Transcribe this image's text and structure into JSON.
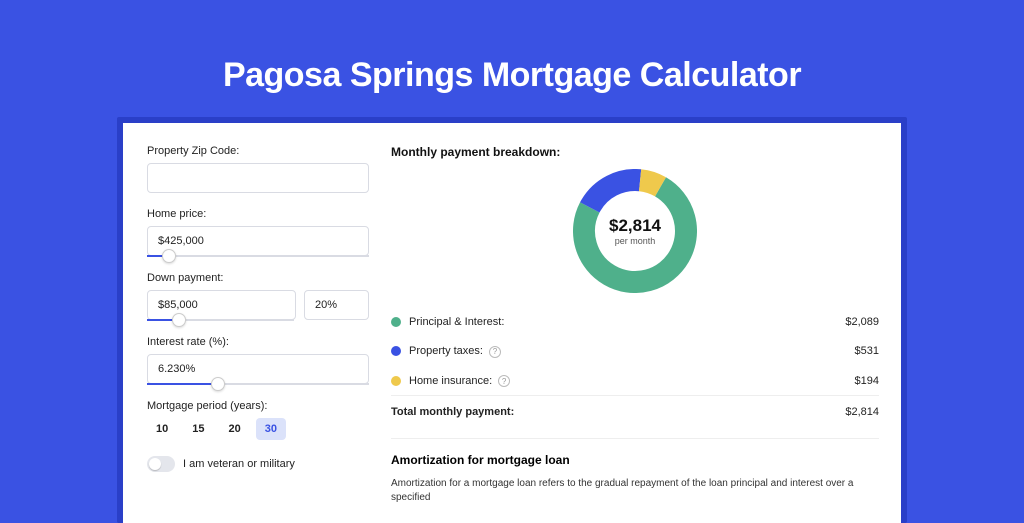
{
  "page": {
    "title": "Pagosa Springs Mortgage Calculator",
    "background_color": "#3a52e3",
    "shadow_color": "#2a3fc8",
    "card_color": "#ffffff"
  },
  "form": {
    "zip_label": "Property Zip Code:",
    "zip_value": "",
    "home_label": "Home price:",
    "home_value": "$425,000",
    "home_slider_pct": 10,
    "down_label": "Down payment:",
    "down_value": "$85,000",
    "down_pct": "20%",
    "down_slider_pct": 22,
    "rate_label": "Interest rate (%):",
    "rate_value": "6.230%",
    "rate_slider_pct": 32,
    "period_label": "Mortgage period (years):",
    "periods": [
      {
        "label": "10",
        "active": false
      },
      {
        "label": "15",
        "active": false
      },
      {
        "label": "20",
        "active": false
      },
      {
        "label": "30",
        "active": true
      }
    ],
    "veteran_label": "I am veteran or military",
    "veteran_on": false
  },
  "breakdown": {
    "heading": "Monthly payment breakdown:",
    "center_amount": "$2,814",
    "center_sub": "per month",
    "donut": {
      "type": "donut",
      "slices": [
        {
          "name": "Principal & Interest",
          "value": 2089,
          "pct": 74.2,
          "color": "#4fb08b"
        },
        {
          "name": "Property taxes",
          "value": 531,
          "pct": 18.9,
          "color": "#3a52e3"
        },
        {
          "name": "Home insurance",
          "value": 194,
          "pct": 6.9,
          "color": "#efc94c"
        }
      ],
      "thickness": 22,
      "size": 124,
      "background": "#ffffff"
    },
    "rows": [
      {
        "label": "Principal & Interest:",
        "color": "#4fb08b",
        "value": "$2,089",
        "help": false
      },
      {
        "label": "Property taxes:",
        "color": "#3a52e3",
        "value": "$531",
        "help": true
      },
      {
        "label": "Home insurance:",
        "color": "#efc94c",
        "value": "$194",
        "help": true
      }
    ],
    "total_label": "Total monthly payment:",
    "total_value": "$2,814"
  },
  "amortization": {
    "heading": "Amortization for mortgage loan",
    "text": "Amortization for a mortgage loan refers to the gradual repayment of the loan principal and interest over a specified"
  },
  "style": {
    "text_color": "#222222",
    "border_color": "#d9dbe3",
    "accent": "#3a52e3",
    "active_tab_bg": "#dbe2fa",
    "font_sizes": {
      "title": 34,
      "label": 11,
      "section": 12,
      "donut_amount": 17
    }
  }
}
